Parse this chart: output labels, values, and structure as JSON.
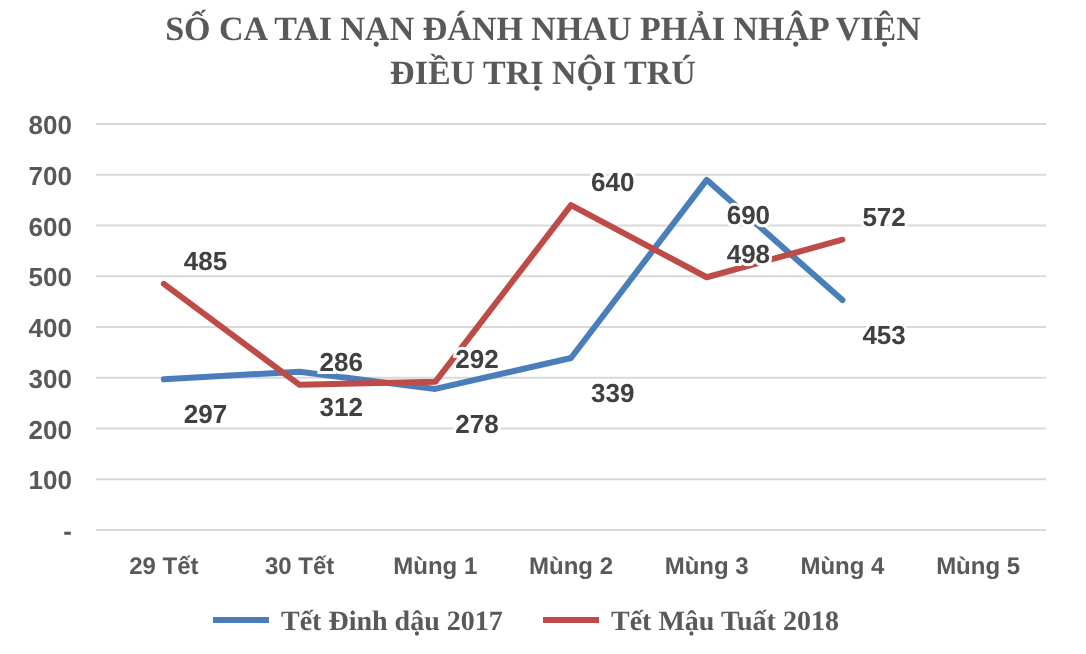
{
  "chart_data": {
    "type": "line",
    "title": "SỐ CA TAI NẠN ĐÁNH NHAU PHẢI NHẬP VIỆN\nĐIỀU TRỊ NỘI TRÚ",
    "categories": [
      "29 Tết",
      "30 Tết",
      "Mùng 1",
      "Mùng 2",
      "Mùng 3",
      "Mùng 4",
      "Mùng 5"
    ],
    "series": [
      {
        "name": "Tết Đinh dậu 2017",
        "color": "#4a7ebb",
        "values": [
          297,
          312,
          278,
          339,
          690,
          453,
          null
        ]
      },
      {
        "name": "Tết Mậu Tuất 2018",
        "color": "#be4b48",
        "values": [
          485,
          286,
          292,
          640,
          498,
          572,
          null
        ]
      }
    ],
    "ylim": [
      0,
      800
    ],
    "yticks": [
      {
        "value": 0,
        "label": "-"
      },
      100,
      200,
      300,
      400,
      500,
      600,
      700,
      800
    ],
    "grid": "y",
    "legend": "bottom",
    "marker": "none",
    "line_style": "solid",
    "data_labels": true
  }
}
